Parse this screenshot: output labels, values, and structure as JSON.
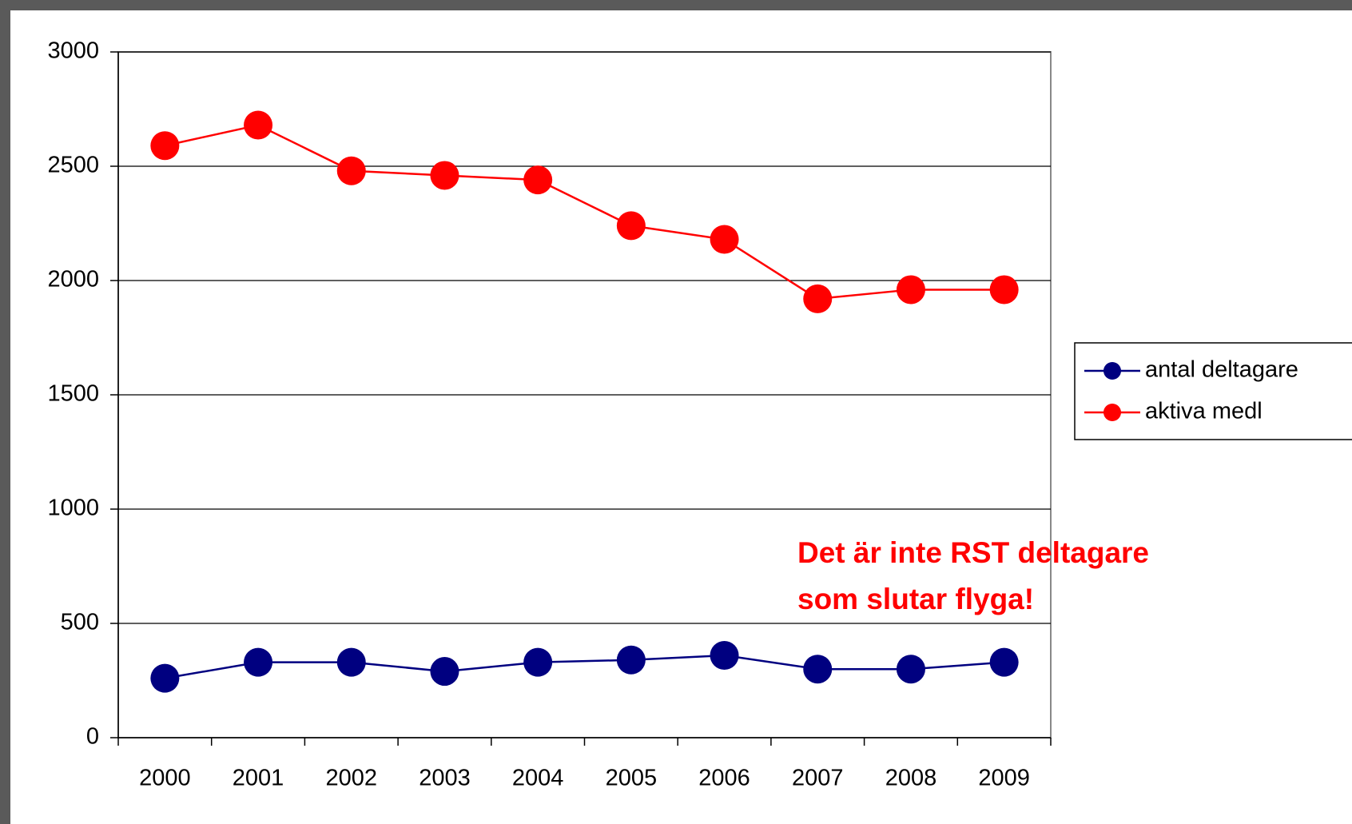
{
  "chart_data": {
    "type": "line",
    "categories": [
      "2000",
      "2001",
      "2002",
      "2003",
      "2004",
      "2005",
      "2006",
      "2007",
      "2008",
      "2009"
    ],
    "series": [
      {
        "name": "antal deltagare",
        "color": "#000080",
        "values": [
          260,
          330,
          330,
          290,
          330,
          340,
          360,
          300,
          300,
          330
        ]
      },
      {
        "name": "aktiva medl",
        "color": "#ff0000",
        "values": [
          2590,
          2680,
          2480,
          2460,
          2440,
          2240,
          2180,
          1920,
          1960,
          1960
        ]
      }
    ],
    "ylim": [
      0,
      3000
    ],
    "yticks": [
      0,
      500,
      1000,
      1500,
      2000,
      2500,
      3000
    ],
    "grid": true,
    "legend": "right",
    "annotation": {
      "lines": [
        "Det är inte RST deltagare",
        "som slutar flyga!"
      ],
      "color": "#ff0000"
    }
  }
}
